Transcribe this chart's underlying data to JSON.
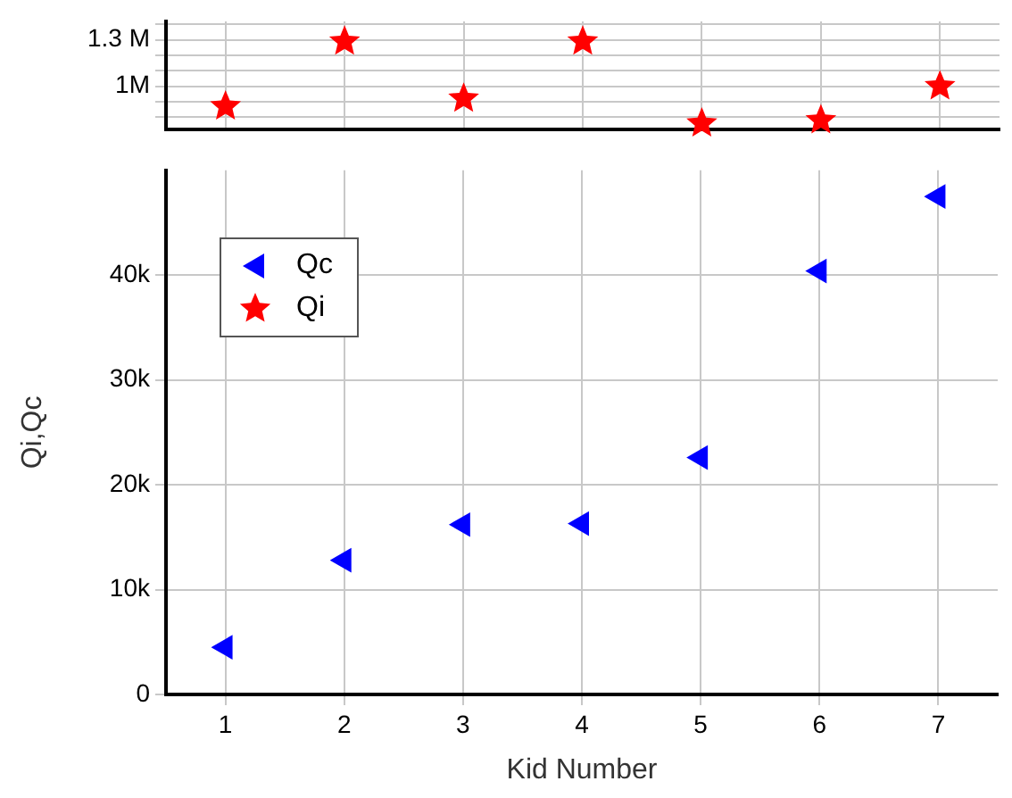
{
  "chart_data": [
    {
      "type": "scatter",
      "x": [
        1,
        2,
        3,
        4,
        5,
        6,
        7
      ],
      "xlim": [
        0.5,
        7.5
      ],
      "xticks": [
        1,
        2,
        3,
        4,
        5,
        6,
        7
      ],
      "series": [
        {
          "name": "Qi",
          "color": "#ff0000",
          "values": [
            870000,
            1290000,
            920000,
            1290000,
            760000,
            780000,
            1000000
          ]
        }
      ],
      "ylim": [
        720000,
        1420000
      ],
      "yticks": [
        {
          "value": 800000,
          "label": null
        },
        {
          "value": 900000,
          "label": null
        },
        {
          "value": 1000000,
          "label": "1M"
        },
        {
          "value": 1100000,
          "label": null
        },
        {
          "value": 1200000,
          "label": null
        },
        {
          "value": 1300000,
          "label": "1.3 M"
        },
        {
          "value": 1400000,
          "label": null
        }
      ],
      "marker": "star",
      "grid": true,
      "tick_labels": "y"
    },
    {
      "type": "scatter",
      "x": [
        1,
        2,
        3,
        4,
        5,
        6,
        7
      ],
      "xlim": [
        0.5,
        7.5
      ],
      "xticks": [
        1,
        2,
        3,
        4,
        5,
        6,
        7
      ],
      "series": [
        {
          "name": "Qc",
          "color": "#0000ff",
          "values": [
            4500,
            12800,
            16200,
            16300,
            22600,
            40400,
            47500
          ]
        }
      ],
      "ylim": [
        0,
        50000
      ],
      "yticks": [
        0,
        {
          "value": 10000,
          "label": "10k"
        },
        {
          "value": 20000,
          "label": "20k"
        },
        {
          "value": 30000,
          "label": "30k"
        },
        {
          "value": 40000,
          "label": "40k"
        }
      ],
      "xlabel": "Kid Number",
      "ylabel": "Qi,Qc",
      "marker": "triangle",
      "grid": true,
      "legend": "top left"
    }
  ]
}
